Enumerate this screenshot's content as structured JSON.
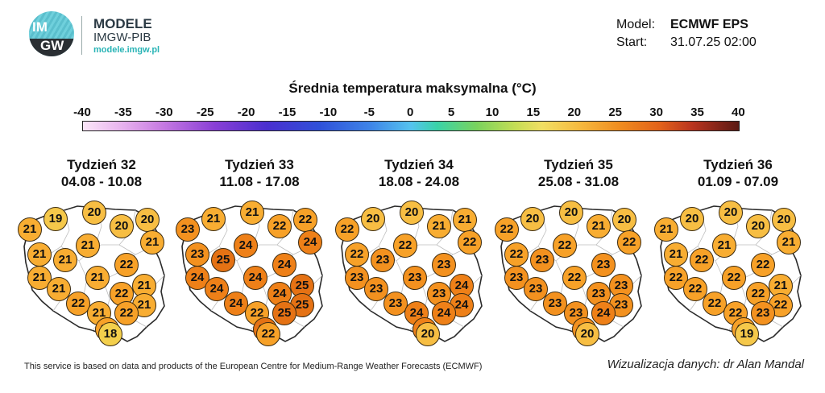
{
  "logo": {
    "line1": "IM",
    "line2": "GW"
  },
  "brand": {
    "name": "MODELE",
    "institute": "IMGW-PIB",
    "url": "modele.imgw.pl"
  },
  "model": {
    "label": "Model:",
    "value": "ECMWF EPS"
  },
  "start": {
    "label": "Start:",
    "value": "31.07.25 02:00"
  },
  "scale": {
    "title": "Średnia temperatura maksymalna (°C)",
    "ticks": [
      "-40",
      "-35",
      "-30",
      "-25",
      "-20",
      "-15",
      "-10",
      "-5",
      "0",
      "5",
      "10",
      "15",
      "20",
      "25",
      "30",
      "35",
      "40"
    ]
  },
  "colors": {
    "t18": "#f3cf4c",
    "t19": "#f5c84a",
    "t20": "#f7be43",
    "t21": "#f8ad32",
    "t22": "#f7a128",
    "t23": "#f3911f",
    "t24": "#ee8018",
    "t25": "#e57214"
  },
  "weeks": [
    {
      "title": "Tydzień 32",
      "dates": "04.08 - 10.08",
      "values": [
        "19",
        "20",
        "21",
        "20",
        "20",
        "21",
        "21",
        "21",
        "21",
        "22",
        "21",
        "21",
        "21",
        "21",
        "22",
        "21",
        "22",
        "21",
        "22",
        "22",
        "18"
      ]
    },
    {
      "title": "Tydzień 33",
      "dates": "11.08 - 17.08",
      "values": [
        "21",
        "21",
        "23",
        "22",
        "22",
        "24",
        "24",
        "23",
        "25",
        "24",
        "24",
        "24",
        "25",
        "24",
        "24",
        "25",
        "24",
        "22",
        "25",
        "25",
        "22"
      ]
    },
    {
      "title": "Tydzień 34",
      "dates": "18.08 - 24.08",
      "values": [
        "20",
        "20",
        "22",
        "21",
        "21",
        "22",
        "22",
        "22",
        "23",
        "23",
        "23",
        "23",
        "24",
        "23",
        "23",
        "24",
        "23",
        "24",
        "24",
        "24",
        "20"
      ]
    },
    {
      "title": "Tydzień 35",
      "dates": "25.08 - 31.08",
      "values": [
        "20",
        "20",
        "22",
        "21",
        "20",
        "22",
        "22",
        "22",
        "23",
        "23",
        "23",
        "22",
        "23",
        "23",
        "23",
        "23",
        "23",
        "23",
        "24",
        "23",
        "20"
      ]
    },
    {
      "title": "Tydzień 36",
      "dates": "01.09 - 07.09",
      "values": [
        "20",
        "20",
        "21",
        "20",
        "20",
        "21",
        "21",
        "21",
        "22",
        "22",
        "22",
        "22",
        "21",
        "22",
        "22",
        "22",
        "22",
        "22",
        "23",
        "22",
        "19"
      ]
    }
  ],
  "footer": {
    "disclaimer": "This service is based on data and products of the European Centre for Medium-Range Weather Forecasts (ECMWF)",
    "credit": "Wizualizacja danych: dr Alan Mandal"
  }
}
